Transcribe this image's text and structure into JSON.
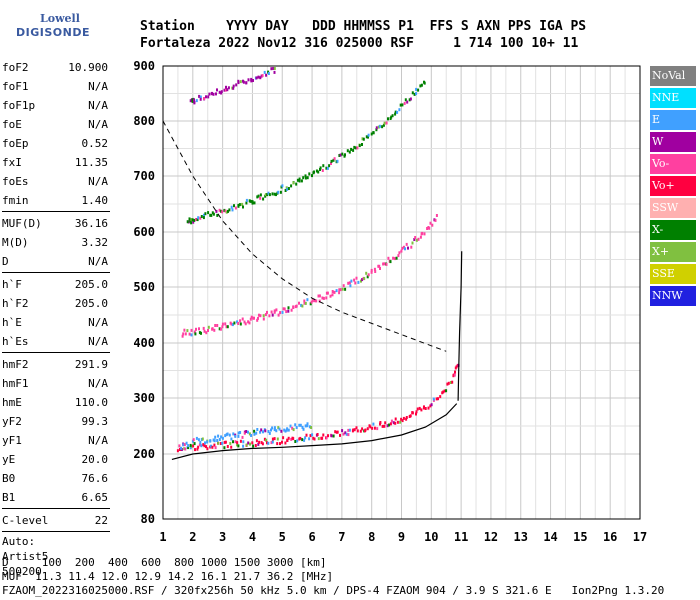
{
  "logo": {
    "line1": "Lowell",
    "line2": "DIGISONDE"
  },
  "header": {
    "line1": "Station    YYYY DAY   DDD HHMMSS P1  FFS S AXN PPS IGA PS",
    "line2": "Fortaleza 2022 Nov12 316 025000 RSF     1 714 100 10+ 11"
  },
  "params": {
    "group1": [
      {
        "k": "foF2",
        "v": "10.900"
      },
      {
        "k": "foF1",
        "v": "N/A"
      },
      {
        "k": "foF1p",
        "v": "N/A"
      },
      {
        "k": "foE",
        "v": "N/A"
      },
      {
        "k": "foEp",
        "v": "0.52"
      },
      {
        "k": "fxI",
        "v": "11.35"
      },
      {
        "k": "foEs",
        "v": "N/A"
      },
      {
        "k": "fmin",
        "v": "1.40"
      }
    ],
    "group2": [
      {
        "k": "MUF(D)",
        "v": "36.16"
      },
      {
        "k": "M(D)",
        "v": "3.32"
      },
      {
        "k": "D",
        "v": "N/A"
      }
    ],
    "group3": [
      {
        "k": "h`F",
        "v": "205.0"
      },
      {
        "k": "h`F2",
        "v": "205.0"
      },
      {
        "k": "h`E",
        "v": "N/A"
      },
      {
        "k": "h`Es",
        "v": "N/A"
      }
    ],
    "group4": [
      {
        "k": "hmF2",
        "v": "291.9"
      },
      {
        "k": "hmF1",
        "v": "N/A"
      },
      {
        "k": "hmE",
        "v": "110.0"
      },
      {
        "k": "yF2",
        "v": "99.3"
      },
      {
        "k": "yF1",
        "v": "N/A"
      },
      {
        "k": "yE",
        "v": "20.0"
      },
      {
        "k": "B0",
        "v": "76.6"
      },
      {
        "k": "B1",
        "v": "6.65"
      }
    ],
    "group5": [
      {
        "k": "C-level",
        "v": "22"
      }
    ],
    "auto_label": "Auto:",
    "auto_name": "Artist5",
    "auto_code": "500200"
  },
  "legend": [
    {
      "label": "NoVal",
      "color": "#808080"
    },
    {
      "label": "NNE",
      "color": "#00e0ff"
    },
    {
      "label": "E",
      "color": "#40a0ff"
    },
    {
      "label": "W",
      "color": "#a000a0"
    },
    {
      "label": "Vo-",
      "color": "#ff40a0"
    },
    {
      "label": "Vo+",
      "color": "#ff0040"
    },
    {
      "label": "SSW",
      "color": "#ffb0b0"
    },
    {
      "label": "X-",
      "color": "#008000"
    },
    {
      "label": "X+",
      "color": "#80c040"
    },
    {
      "label": "SSE",
      "color": "#d0d000"
    },
    {
      "label": "NNW",
      "color": "#2020e0"
    }
  ],
  "footer": {
    "line1": "D     100  200  400  600  800 1000 1500 3000 [km]",
    "line2": "MUF  11.3 11.4 12.0 12.9 14.2 16.1 21.7 36.2 [MHz]",
    "line3": "FZAOM_2022316025000.RSF / 320fx256h 50 kHz 5.0 km / DPS-4 FZAOM 904 / 3.9 S 321.6 E   Ion2Png 1.3.20"
  },
  "chart_data": {
    "type": "scatter",
    "xlim": [
      1,
      17
    ],
    "ylim": [
      80,
      900
    ],
    "x_ticks": [
      1,
      2,
      3,
      4,
      5,
      6,
      7,
      8,
      9,
      10,
      11,
      12,
      13,
      14,
      15,
      16,
      17
    ],
    "y_ticks": [
      80,
      200,
      300,
      400,
      500,
      600,
      700,
      800,
      900
    ],
    "grid": true,
    "series": [
      {
        "name": "Vo+",
        "color": "#ff0040",
        "trace": [
          [
            1.5,
            213
          ],
          [
            2,
            215
          ],
          [
            3,
            218
          ],
          [
            4,
            222
          ],
          [
            5,
            227
          ],
          [
            6,
            233
          ],
          [
            7,
            240
          ],
          [
            8,
            250
          ],
          [
            9,
            265
          ],
          [
            9.8,
            285
          ],
          [
            10.3,
            310
          ],
          [
            10.7,
            340
          ],
          [
            10.9,
            370
          ]
        ]
      },
      {
        "name": "Vo-",
        "color": "#ff40a0",
        "trace": [
          [
            1.6,
            420
          ],
          [
            2,
            422
          ],
          [
            3,
            432
          ],
          [
            4,
            445
          ],
          [
            5,
            460
          ],
          [
            6,
            478
          ],
          [
            7,
            500
          ],
          [
            8,
            530
          ],
          [
            9,
            568
          ],
          [
            9.8,
            605
          ],
          [
            10.2,
            630
          ]
        ]
      },
      {
        "name": "X-",
        "color": "#008000",
        "trace": [
          [
            1.8,
            620
          ],
          [
            2,
            625
          ],
          [
            3,
            640
          ],
          [
            4,
            658
          ],
          [
            5,
            680
          ],
          [
            6,
            705
          ],
          [
            7,
            740
          ],
          [
            8,
            780
          ],
          [
            9,
            830
          ],
          [
            9.8,
            880
          ]
        ]
      },
      {
        "name": "W",
        "color": "#a000a0",
        "trace": [
          [
            1.9,
            835
          ],
          [
            2,
            840
          ],
          [
            3,
            860
          ],
          [
            4,
            880
          ],
          [
            4.8,
            898
          ]
        ]
      },
      {
        "name": "E",
        "color": "#40a0ff",
        "trace": [
          [
            1.5,
            215
          ],
          [
            2,
            225
          ],
          [
            3,
            232
          ],
          [
            4,
            240
          ],
          [
            5,
            248
          ],
          [
            6,
            252
          ]
        ]
      }
    ],
    "profile_curve": [
      [
        1.3,
        190
      ],
      [
        2,
        200
      ],
      [
        3,
        206
      ],
      [
        4,
        210
      ],
      [
        5,
        212
      ],
      [
        6,
        215
      ],
      [
        7,
        218
      ],
      [
        8,
        224
      ],
      [
        9,
        234
      ],
      [
        9.8,
        248
      ],
      [
        10.5,
        270
      ],
      [
        10.85,
        290
      ]
    ],
    "profile_top": [
      [
        10.9,
        295
      ],
      [
        10.92,
        350
      ],
      [
        10.95,
        420
      ],
      [
        11.0,
        500
      ],
      [
        11.02,
        565
      ]
    ],
    "dashed_muf_curve": [
      [
        1,
        800
      ],
      [
        2,
        700
      ],
      [
        3,
        620
      ],
      [
        4,
        560
      ],
      [
        5,
        515
      ],
      [
        6,
        480
      ],
      [
        7,
        455
      ],
      [
        8,
        435
      ],
      [
        9,
        415
      ],
      [
        10,
        395
      ],
      [
        10.5,
        385
      ]
    ]
  }
}
